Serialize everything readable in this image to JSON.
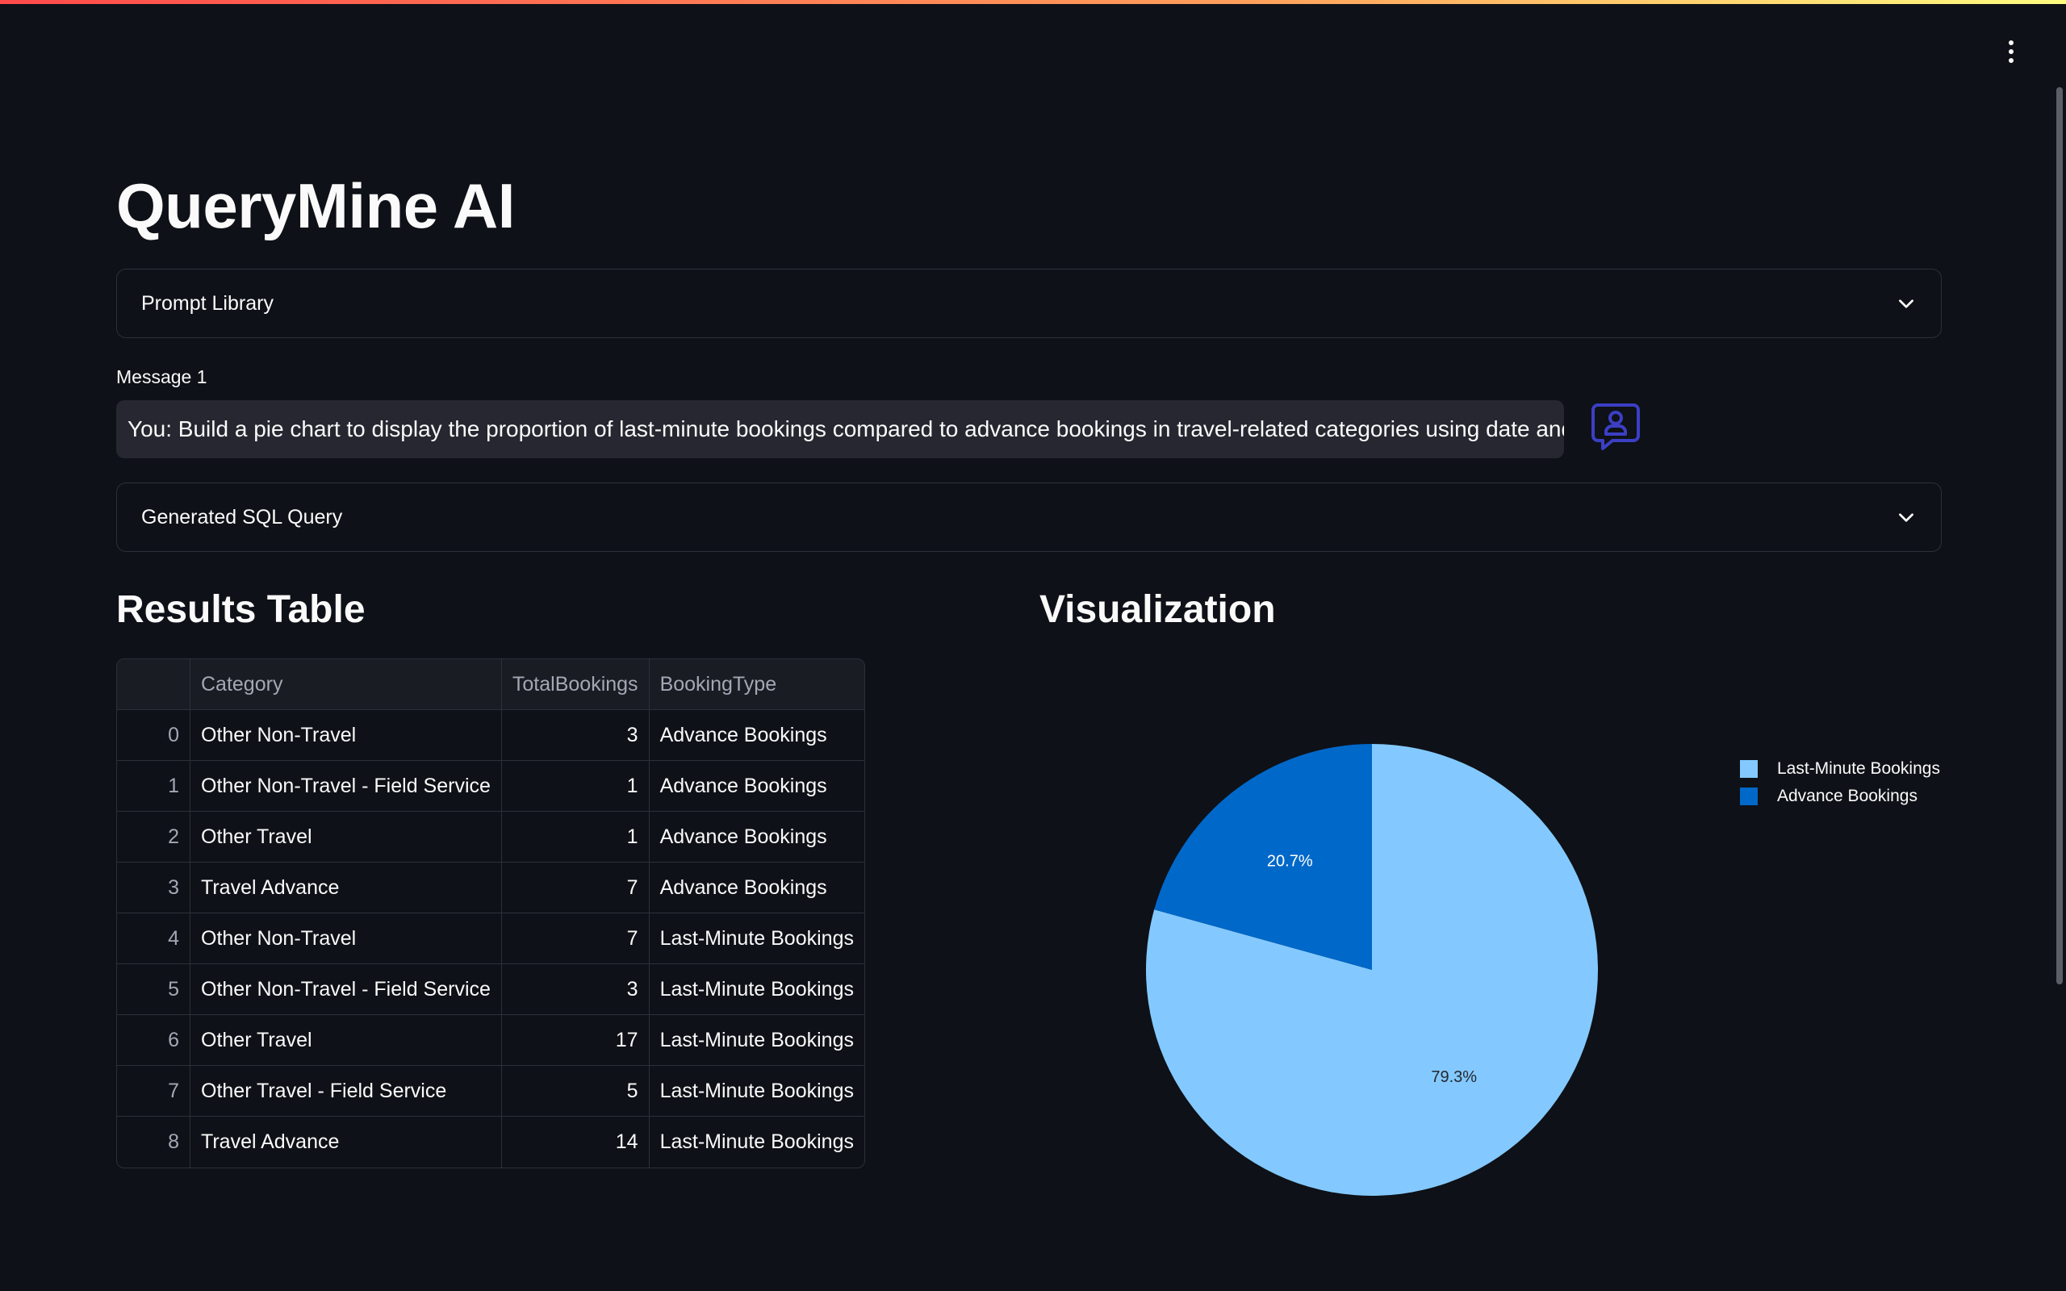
{
  "app": {
    "title": "QueryMine AI"
  },
  "prompt_library": {
    "label": "Prompt Library"
  },
  "message": {
    "label": "Message 1",
    "text": "You: Build a pie chart to display the proportion of last-minute bookings compared to advance bookings in travel-related categories using date and re"
  },
  "sql_expander": {
    "label": "Generated SQL Query"
  },
  "results": {
    "title": "Results Table",
    "columns": [
      "",
      "Category",
      "TotalBookings",
      "BookingType"
    ],
    "rows": [
      {
        "index": "0",
        "category": "Other Non-Travel",
        "total": "3",
        "type": "Advance Bookings"
      },
      {
        "index": "1",
        "category": "Other Non-Travel - Field Service",
        "total": "1",
        "type": "Advance Bookings"
      },
      {
        "index": "2",
        "category": "Other Travel",
        "total": "1",
        "type": "Advance Bookings"
      },
      {
        "index": "3",
        "category": "Travel Advance",
        "total": "7",
        "type": "Advance Bookings"
      },
      {
        "index": "4",
        "category": "Other Non-Travel",
        "total": "7",
        "type": "Last-Minute Bookings"
      },
      {
        "index": "5",
        "category": "Other Non-Travel - Field Service",
        "total": "3",
        "type": "Last-Minute Bookings"
      },
      {
        "index": "6",
        "category": "Other Travel",
        "total": "17",
        "type": "Last-Minute Bookings"
      },
      {
        "index": "7",
        "category": "Other Travel - Field Service",
        "total": "5",
        "type": "Last-Minute Bookings"
      },
      {
        "index": "8",
        "category": "Travel Advance",
        "total": "14",
        "type": "Last-Minute Bookings"
      }
    ]
  },
  "visualization": {
    "title": "Visualization"
  },
  "colors": {
    "background": "#0e1117",
    "accent_light": "#83c9ff",
    "accent_dark": "#0068c9",
    "avatar": "#3b3fc4"
  },
  "icons": {
    "menu": "vertical-dots-icon",
    "chevron": "chevron-down-icon",
    "avatar": "user-chat-icon"
  },
  "chart_data": {
    "type": "pie",
    "title": "",
    "labels": [
      "Last-Minute Bookings",
      "Advance Bookings"
    ],
    "values": [
      79.3,
      20.7
    ],
    "value_labels": [
      "79.3%",
      "20.7%"
    ],
    "colors": [
      "#83c9ff",
      "#0068c9"
    ],
    "legend_position": "top-right"
  }
}
